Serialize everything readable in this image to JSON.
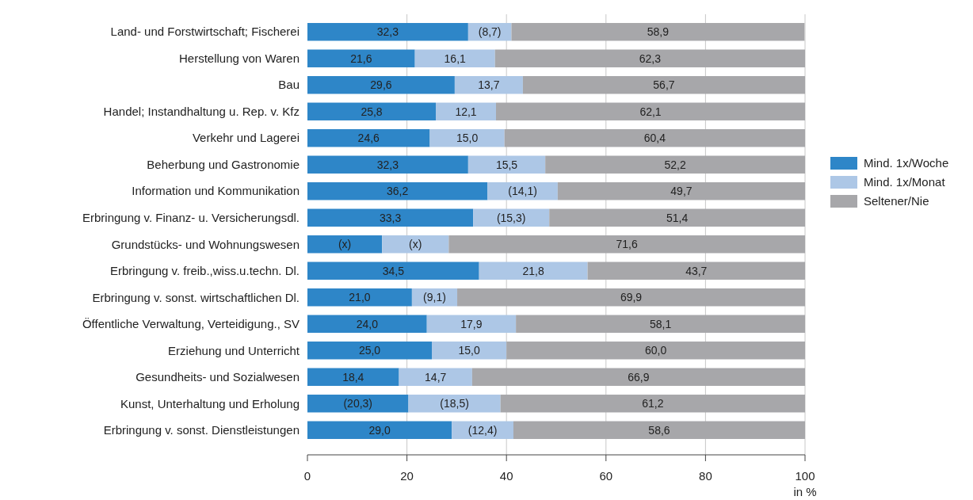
{
  "chart_data": {
    "type": "bar",
    "orientation": "horizontal",
    "stacked": true,
    "xlabel": "in %",
    "categories": [
      "Land- und Forstwirtschaft; Fischerei",
      "Herstellung von Waren",
      "Bau",
      "Handel; Instandhaltung u. Rep. v. Kfz",
      "Verkehr und Lagerei",
      "Beherbung und Gastronomie",
      "Information und Kommunikation",
      "Erbringung v. Finanz- u. Versicherungsdl.",
      "Grundstücks- und Wohnungswesen",
      "Erbringung v. freib.,wiss.u.techn. Dl.",
      "Erbringung v. sonst. wirtschaftlichen Dl.",
      "Öffentliche Verwaltung, Verteidigung., SV",
      "Erziehung und Unterricht",
      "Gesundheits- und Sozialwesen",
      "Kunst, Unterhaltung und Erholung",
      "Erbringung v. sonst. Dienstleistungen"
    ],
    "series": [
      {
        "name": "Mind. 1x/Woche",
        "color": "#2e86c8",
        "values": [
          32.3,
          21.6,
          29.6,
          25.8,
          24.6,
          32.3,
          36.2,
          33.3,
          15,
          34.5,
          21.0,
          24.0,
          25.0,
          18.4,
          20.3,
          29.0
        ],
        "value_labels": [
          "32,3",
          "21,6",
          "29,6",
          "25,8",
          "24,6",
          "32,3",
          "36,2",
          "33,3",
          "(x)",
          "34,5",
          "21,0",
          "24,0",
          "25,0",
          "18,4",
          "(20,3)",
          "29,0"
        ]
      },
      {
        "name": "Mind. 1x/Monat",
        "color": "#adc7e6",
        "values": [
          8.7,
          16.1,
          13.7,
          12.1,
          15.0,
          15.5,
          14.1,
          15.3,
          13.4,
          21.8,
          9.1,
          17.9,
          15.0,
          14.7,
          18.5,
          12.4
        ],
        "value_labels": [
          "(8,7)",
          "16,1",
          "13,7",
          "12,1",
          "15,0",
          "15,5",
          "(14,1)",
          "(15,3)",
          "(x)",
          "21,8",
          "(9,1)",
          "17,9",
          "15,0",
          "14,7",
          "(18,5)",
          "(12,4)"
        ]
      },
      {
        "name": "Seltener/Nie",
        "color": "#a7a7aa",
        "values": [
          58.9,
          62.3,
          56.7,
          62.1,
          60.4,
          52.2,
          49.7,
          51.4,
          71.6,
          43.7,
          69.9,
          58.1,
          60.0,
          66.9,
          61.2,
          58.6
        ],
        "value_labels": [
          "58,9",
          "62,3",
          "56,7",
          "62,1",
          "60,4",
          "52,2",
          "49,7",
          "51,4",
          "71,6",
          "43,7",
          "69,9",
          "58,1",
          "60,0",
          "66,9",
          "61,2",
          "58,6"
        ]
      }
    ],
    "xlim": [
      0,
      100
    ],
    "xticks": [
      0,
      20,
      40,
      60,
      80,
      100
    ],
    "grid": "x",
    "legend": "right"
  }
}
